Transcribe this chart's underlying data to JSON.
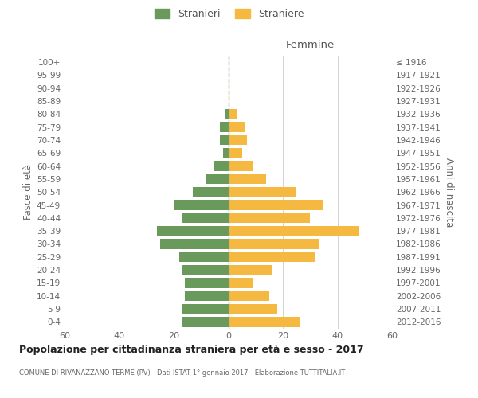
{
  "age_groups": [
    "100+",
    "95-99",
    "90-94",
    "85-89",
    "80-84",
    "75-79",
    "70-74",
    "65-69",
    "60-64",
    "55-59",
    "50-54",
    "45-49",
    "40-44",
    "35-39",
    "30-34",
    "25-29",
    "20-24",
    "15-19",
    "10-14",
    "5-9",
    "0-4"
  ],
  "birth_years": [
    "≤ 1916",
    "1917-1921",
    "1922-1926",
    "1927-1931",
    "1932-1936",
    "1937-1941",
    "1942-1946",
    "1947-1951",
    "1952-1956",
    "1957-1961",
    "1962-1966",
    "1967-1971",
    "1972-1976",
    "1977-1981",
    "1982-1986",
    "1987-1991",
    "1992-1996",
    "1997-2001",
    "2002-2006",
    "2007-2011",
    "2012-2016"
  ],
  "males": [
    0,
    0,
    0,
    0,
    1,
    3,
    3,
    2,
    5,
    8,
    13,
    20,
    17,
    26,
    25,
    18,
    17,
    16,
    16,
    17,
    17
  ],
  "females": [
    0,
    0,
    0,
    0,
    3,
    6,
    7,
    5,
    9,
    14,
    25,
    35,
    30,
    48,
    33,
    32,
    16,
    9,
    15,
    18,
    26
  ],
  "male_color": "#6a9a5b",
  "female_color": "#f5b942",
  "background_color": "#ffffff",
  "grid_color": "#cccccc",
  "title": "Popolazione per cittadinanza straniera per età e sesso - 2017",
  "subtitle": "COMUNE DI RIVANAZZANO TERME (PV) - Dati ISTAT 1° gennaio 2017 - Elaborazione TUTTITALIA.IT",
  "right_label": "Femmine",
  "y_left_label": "Fasce di età",
  "y_right_label": "Anni di nascita",
  "legend_male": "Stranieri",
  "legend_female": "Straniere",
  "xlim": 60
}
